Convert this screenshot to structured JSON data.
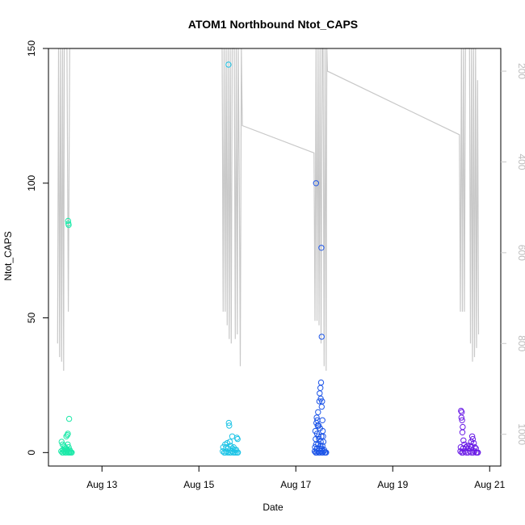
{
  "chart_data": {
    "type": "scatter",
    "title": "ATOM1 Northbound Ntot_CAPS",
    "xlabel": "Date",
    "ylabel": "Ntot_CAPS",
    "x_unit": "date",
    "xlim": [
      "2024-08-11T21:30",
      "2024-08-21T05:30"
    ],
    "ylim": [
      -5,
      150
    ],
    "y_ticks": [
      "0",
      "50",
      "100",
      "150"
    ],
    "x_ticks": [
      {
        "date": "2024-08-13",
        "label": "Aug 13"
      },
      {
        "date": "2024-08-15",
        "label": "Aug 15"
      },
      {
        "date": "2024-08-17",
        "label": "Aug 17"
      },
      {
        "date": "2024-08-19",
        "label": "Aug 19"
      },
      {
        "date": "2024-08-21",
        "label": "Aug 21"
      }
    ],
    "y2_axis": {
      "reversed": true,
      "lim": [
        150,
        1070
      ],
      "ticks": [
        "200",
        "400",
        "600",
        "800",
        "1000"
      ],
      "color": "#c8c8c8"
    },
    "depth_trace_color": "#c8c8c8",
    "grid": false,
    "legend": "none",
    "series": [
      {
        "color": "#1de9a9",
        "points": [
          [
            "2024-08-12T07:12",
            86
          ],
          [
            "2024-08-12T07:20",
            85
          ],
          [
            "2024-08-12T07:30",
            84.5
          ],
          [
            "2024-08-12T07:45",
            12.5
          ],
          [
            "2024-08-12T07:05",
            7
          ],
          [
            "2024-08-12T06:50",
            6.5
          ],
          [
            "2024-08-12T06:20",
            6
          ],
          [
            "2024-08-12T04:00",
            4
          ],
          [
            "2024-08-12T04:30",
            3
          ],
          [
            "2024-08-12T05:10",
            2.5
          ],
          [
            "2024-08-12T05:40",
            2
          ],
          [
            "2024-08-12T06:00",
            1.5
          ],
          [
            "2024-08-12T06:30",
            1
          ],
          [
            "2024-08-12T07:00",
            3
          ],
          [
            "2024-08-12T07:30",
            2
          ],
          [
            "2024-08-12T03:50",
            0.5
          ],
          [
            "2024-08-12T04:20",
            0
          ],
          [
            "2024-08-12T04:50",
            0
          ],
          [
            "2024-08-12T05:20",
            0.5
          ],
          [
            "2024-08-12T05:50",
            0
          ],
          [
            "2024-08-12T06:10",
            0
          ],
          [
            "2024-08-12T06:40",
            0.5
          ],
          [
            "2024-08-12T07:10",
            0
          ],
          [
            "2024-08-12T07:40",
            0
          ],
          [
            "2024-08-12T08:10",
            0
          ],
          [
            "2024-08-12T08:20",
            0.5
          ],
          [
            "2024-08-12T08:40",
            0
          ],
          [
            "2024-08-12T09:00",
            0
          ],
          [
            "2024-08-12T04:40",
            1
          ],
          [
            "2024-08-12T05:30",
            1
          ],
          [
            "2024-08-12T06:50",
            1
          ],
          [
            "2024-08-12T08:00",
            1
          ]
        ]
      },
      {
        "color": "#1ec4e6",
        "points": [
          [
            "2024-08-15T14:40",
            144
          ],
          [
            "2024-08-15T14:50",
            11
          ],
          [
            "2024-08-15T15:00",
            10
          ],
          [
            "2024-08-15T16:30",
            6
          ],
          [
            "2024-08-15T18:50",
            5.5
          ],
          [
            "2024-08-15T19:10",
            5
          ],
          [
            "2024-08-15T15:20",
            4
          ],
          [
            "2024-08-15T14:00",
            3.5
          ],
          [
            "2024-08-15T13:00",
            3
          ],
          [
            "2024-08-15T12:00",
            2
          ],
          [
            "2024-08-15T13:30",
            2
          ],
          [
            "2024-08-15T14:30",
            1.5
          ],
          [
            "2024-08-15T15:40",
            2.5
          ],
          [
            "2024-08-15T16:40",
            1.5
          ],
          [
            "2024-08-15T17:10",
            2
          ],
          [
            "2024-08-15T17:50",
            1
          ],
          [
            "2024-08-15T18:30",
            1
          ],
          [
            "2024-08-15T11:50",
            0.5
          ],
          [
            "2024-08-15T12:30",
            0
          ],
          [
            "2024-08-15T13:10",
            0
          ],
          [
            "2024-08-15T13:50",
            0.5
          ],
          [
            "2024-08-15T14:20",
            0
          ],
          [
            "2024-08-15T15:10",
            0
          ],
          [
            "2024-08-15T15:50",
            0
          ],
          [
            "2024-08-15T16:20",
            0.5
          ],
          [
            "2024-08-15T17:00",
            0
          ],
          [
            "2024-08-15T17:40",
            0
          ],
          [
            "2024-08-15T18:20",
            0
          ],
          [
            "2024-08-15T19:00",
            0
          ],
          [
            "2024-08-15T19:20",
            0
          ]
        ]
      },
      {
        "color": "#1d55e8",
        "points": [
          [
            "2024-08-17T10:00",
            100
          ],
          [
            "2024-08-17T12:40",
            76
          ],
          [
            "2024-08-17T12:50",
            43
          ],
          [
            "2024-08-17T12:30",
            26
          ],
          [
            "2024-08-17T12:10",
            24
          ],
          [
            "2024-08-17T11:50",
            22
          ],
          [
            "2024-08-17T12:20",
            20
          ],
          [
            "2024-08-17T11:40",
            19
          ],
          [
            "2024-08-17T13:00",
            19
          ],
          [
            "2024-08-17T12:50",
            17
          ],
          [
            "2024-08-17T11:00",
            15
          ],
          [
            "2024-08-17T10:20",
            13
          ],
          [
            "2024-08-17T10:40",
            12
          ],
          [
            "2024-08-17T13:10",
            12
          ],
          [
            "2024-08-17T10:10",
            11
          ],
          [
            "2024-08-17T10:50",
            10
          ],
          [
            "2024-08-17T11:20",
            10
          ],
          [
            "2024-08-17T12:00",
            9
          ],
          [
            "2024-08-17T09:40",
            8
          ],
          [
            "2024-08-17T13:20",
            8
          ],
          [
            "2024-08-17T10:30",
            7
          ],
          [
            "2024-08-17T11:10",
            6
          ],
          [
            "2024-08-17T12:40",
            6
          ],
          [
            "2024-08-17T13:30",
            6
          ],
          [
            "2024-08-17T09:50",
            5
          ],
          [
            "2024-08-17T11:30",
            5
          ],
          [
            "2024-08-17T12:20",
            4
          ],
          [
            "2024-08-17T13:40",
            4
          ],
          [
            "2024-08-17T10:00",
            3
          ],
          [
            "2024-08-17T11:00",
            3
          ],
          [
            "2024-08-17T12:10",
            2.5
          ],
          [
            "2024-08-17T13:10",
            2.5
          ],
          [
            "2024-08-17T09:30",
            2
          ],
          [
            "2024-08-17T10:30",
            1.5
          ],
          [
            "2024-08-17T11:40",
            1.5
          ],
          [
            "2024-08-17T12:50",
            1.5
          ],
          [
            "2024-08-17T14:00",
            1
          ],
          [
            "2024-08-17T09:20",
            0.5
          ],
          [
            "2024-08-17T09:50",
            0
          ],
          [
            "2024-08-17T10:20",
            0
          ],
          [
            "2024-08-17T10:50",
            0.5
          ],
          [
            "2024-08-17T11:20",
            0
          ],
          [
            "2024-08-17T11:50",
            0
          ],
          [
            "2024-08-17T12:20",
            0.5
          ],
          [
            "2024-08-17T12:50",
            0
          ],
          [
            "2024-08-17T13:20",
            0
          ],
          [
            "2024-08-17T13:50",
            0.5
          ],
          [
            "2024-08-17T14:20",
            0
          ],
          [
            "2024-08-17T14:40",
            0
          ],
          [
            "2024-08-17T15:00",
            0
          ]
        ]
      },
      {
        "color": "#6a1be6",
        "points": [
          [
            "2024-08-20T09:50",
            15.5
          ],
          [
            "2024-08-20T10:10",
            15
          ],
          [
            "2024-08-20T10:00",
            13
          ],
          [
            "2024-08-20T10:20",
            12
          ],
          [
            "2024-08-20T10:40",
            9.5
          ],
          [
            "2024-08-20T10:30",
            7.5
          ],
          [
            "2024-08-20T15:20",
            6
          ],
          [
            "2024-08-20T15:40",
            5
          ],
          [
            "2024-08-20T11:00",
            4.5
          ],
          [
            "2024-08-20T14:50",
            4
          ],
          [
            "2024-08-20T16:10",
            3.5
          ],
          [
            "2024-08-20T11:30",
            3
          ],
          [
            "2024-08-20T13:00",
            2.5
          ],
          [
            "2024-08-20T14:30",
            2.5
          ],
          [
            "2024-08-20T09:40",
            2
          ],
          [
            "2024-08-20T12:10",
            2
          ],
          [
            "2024-08-20T15:00",
            2
          ],
          [
            "2024-08-20T16:40",
            2
          ],
          [
            "2024-08-20T10:50",
            1.5
          ],
          [
            "2024-08-20T13:40",
            1.5
          ],
          [
            "2024-08-20T17:10",
            1.5
          ],
          [
            "2024-08-20T09:30",
            0.5
          ],
          [
            "2024-08-20T10:10",
            0
          ],
          [
            "2024-08-20T10:50",
            0
          ],
          [
            "2024-08-20T11:40",
            0.5
          ],
          [
            "2024-08-20T12:30",
            0
          ],
          [
            "2024-08-20T13:20",
            0
          ],
          [
            "2024-08-20T14:10",
            0.5
          ],
          [
            "2024-08-20T15:00",
            0
          ],
          [
            "2024-08-20T15:50",
            0
          ],
          [
            "2024-08-20T16:30",
            0.5
          ],
          [
            "2024-08-20T17:20",
            0
          ],
          [
            "2024-08-20T17:50",
            0
          ],
          [
            "2024-08-20T18:10",
            0
          ]
        ]
      }
    ],
    "depth_trace": [
      [
        "2024-08-12T02:00",
        800
      ],
      [
        "2024-08-12T02:30",
        150
      ],
      [
        "2024-08-12T03:00",
        830
      ],
      [
        "2024-08-12T03:30",
        150
      ],
      [
        "2024-08-12T04:00",
        840
      ],
      [
        "2024-08-12T04:30",
        150
      ],
      [
        "2024-08-12T05:00",
        860
      ],
      [
        "2024-08-12T05:20",
        150
      ],
      [
        "2024-08-12T06:40",
        150
      ],
      [
        "2024-08-12T07:20",
        730
      ],
      [
        "2024-08-12T08:00",
        150
      ],
      [
        "2024-08-12T08:40",
        150
      ],
      [
        "2024-08-15T11:30",
        150
      ],
      [
        "2024-08-15T12:00",
        730
      ],
      [
        "2024-08-15T12:30",
        150
      ],
      [
        "2024-08-15T13:00",
        730
      ],
      [
        "2024-08-15T13:30",
        150
      ],
      [
        "2024-08-15T14:00",
        760
      ],
      [
        "2024-08-15T14:30",
        150
      ],
      [
        "2024-08-15T15:00",
        790
      ],
      [
        "2024-08-15T15:30",
        150
      ],
      [
        "2024-08-15T16:00",
        800
      ],
      [
        "2024-08-15T16:30",
        150
      ],
      [
        "2024-08-15T17:30",
        150
      ],
      [
        "2024-08-15T18:00",
        790
      ],
      [
        "2024-08-15T18:30",
        150
      ],
      [
        "2024-08-15T19:00",
        780
      ],
      [
        "2024-08-15T19:30",
        150
      ],
      [
        "2024-08-15T20:00",
        450
      ],
      [
        "2024-08-15T20:30",
        850
      ],
      [
        "2024-08-15T21:00",
        150
      ],
      [
        "2024-08-15T21:30",
        320
      ],
      [
        "2024-08-17T09:00",
        380
      ],
      [
        "2024-08-17T09:30",
        750
      ],
      [
        "2024-08-17T10:00",
        150
      ],
      [
        "2024-08-17T10:30",
        750
      ],
      [
        "2024-08-17T11:00",
        150
      ],
      [
        "2024-08-17T11:30",
        760
      ],
      [
        "2024-08-17T12:00",
        150
      ],
      [
        "2024-08-17T12:30",
        800
      ],
      [
        "2024-08-17T13:00",
        150
      ],
      [
        "2024-08-17T13:30",
        150
      ],
      [
        "2024-08-17T14:00",
        850
      ],
      [
        "2024-08-17T14:30",
        150
      ],
      [
        "2024-08-17T15:00",
        860
      ],
      [
        "2024-08-17T15:20",
        150
      ],
      [
        "2024-08-17T15:40",
        200
      ],
      [
        "2024-08-20T09:00",
        340
      ],
      [
        "2024-08-20T09:30",
        730
      ],
      [
        "2024-08-20T10:00",
        150
      ],
      [
        "2024-08-20T10:30",
        730
      ],
      [
        "2024-08-20T11:00",
        150
      ],
      [
        "2024-08-20T11:30",
        730
      ],
      [
        "2024-08-20T12:00",
        150
      ],
      [
        "2024-08-20T14:00",
        150
      ],
      [
        "2024-08-20T14:30",
        800
      ],
      [
        "2024-08-20T15:00",
        150
      ],
      [
        "2024-08-20T15:30",
        840
      ],
      [
        "2024-08-20T16:00",
        150
      ],
      [
        "2024-08-20T16:30",
        830
      ],
      [
        "2024-08-20T17:00",
        150
      ],
      [
        "2024-08-20T17:30",
        810
      ],
      [
        "2024-08-20T18:00",
        220
      ],
      [
        "2024-08-20T18:30",
        780
      ]
    ]
  }
}
